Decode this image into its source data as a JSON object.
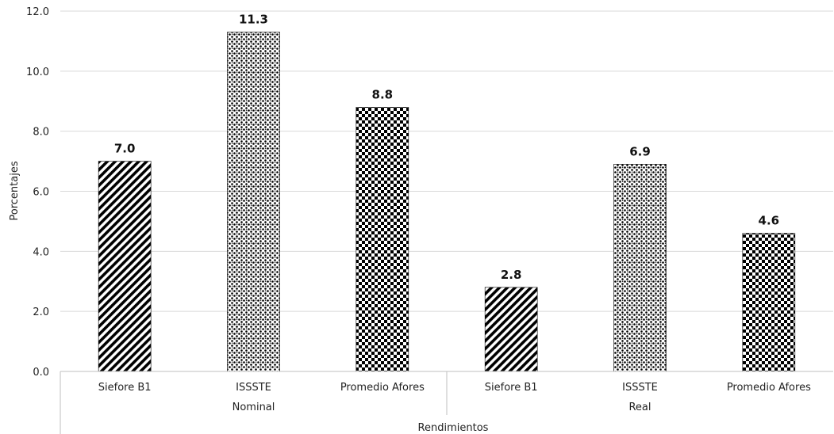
{
  "chart_data": {
    "type": "bar",
    "xlabel": "Rendimientos",
    "ylabel": "Porcentajes",
    "ylim": [
      0,
      12
    ],
    "yticks": [
      "0.0",
      "2.0",
      "4.0",
      "6.0",
      "8.0",
      "10.0",
      "12.0"
    ],
    "grid": true,
    "groups": [
      {
        "name": "Nominal",
        "bars": [
          {
            "category": "Siefore B1",
            "value": 7.0,
            "label": "7.0",
            "pattern": "diagonal"
          },
          {
            "category": "ISSSTE",
            "value": 11.3,
            "label": "11.3",
            "pattern": "dots"
          },
          {
            "category": "Promedio Afores",
            "value": 8.8,
            "label": "8.8",
            "pattern": "checker"
          }
        ]
      },
      {
        "name": "Real",
        "bars": [
          {
            "category": "Siefore B1",
            "value": 2.8,
            "label": "2.8",
            "pattern": "diagonal"
          },
          {
            "category": "ISSSTE",
            "value": 6.9,
            "label": "6.9",
            "pattern": "dots"
          },
          {
            "category": "Promedio Afores",
            "value": 4.6,
            "label": "4.6",
            "pattern": "checker"
          }
        ]
      }
    ]
  }
}
